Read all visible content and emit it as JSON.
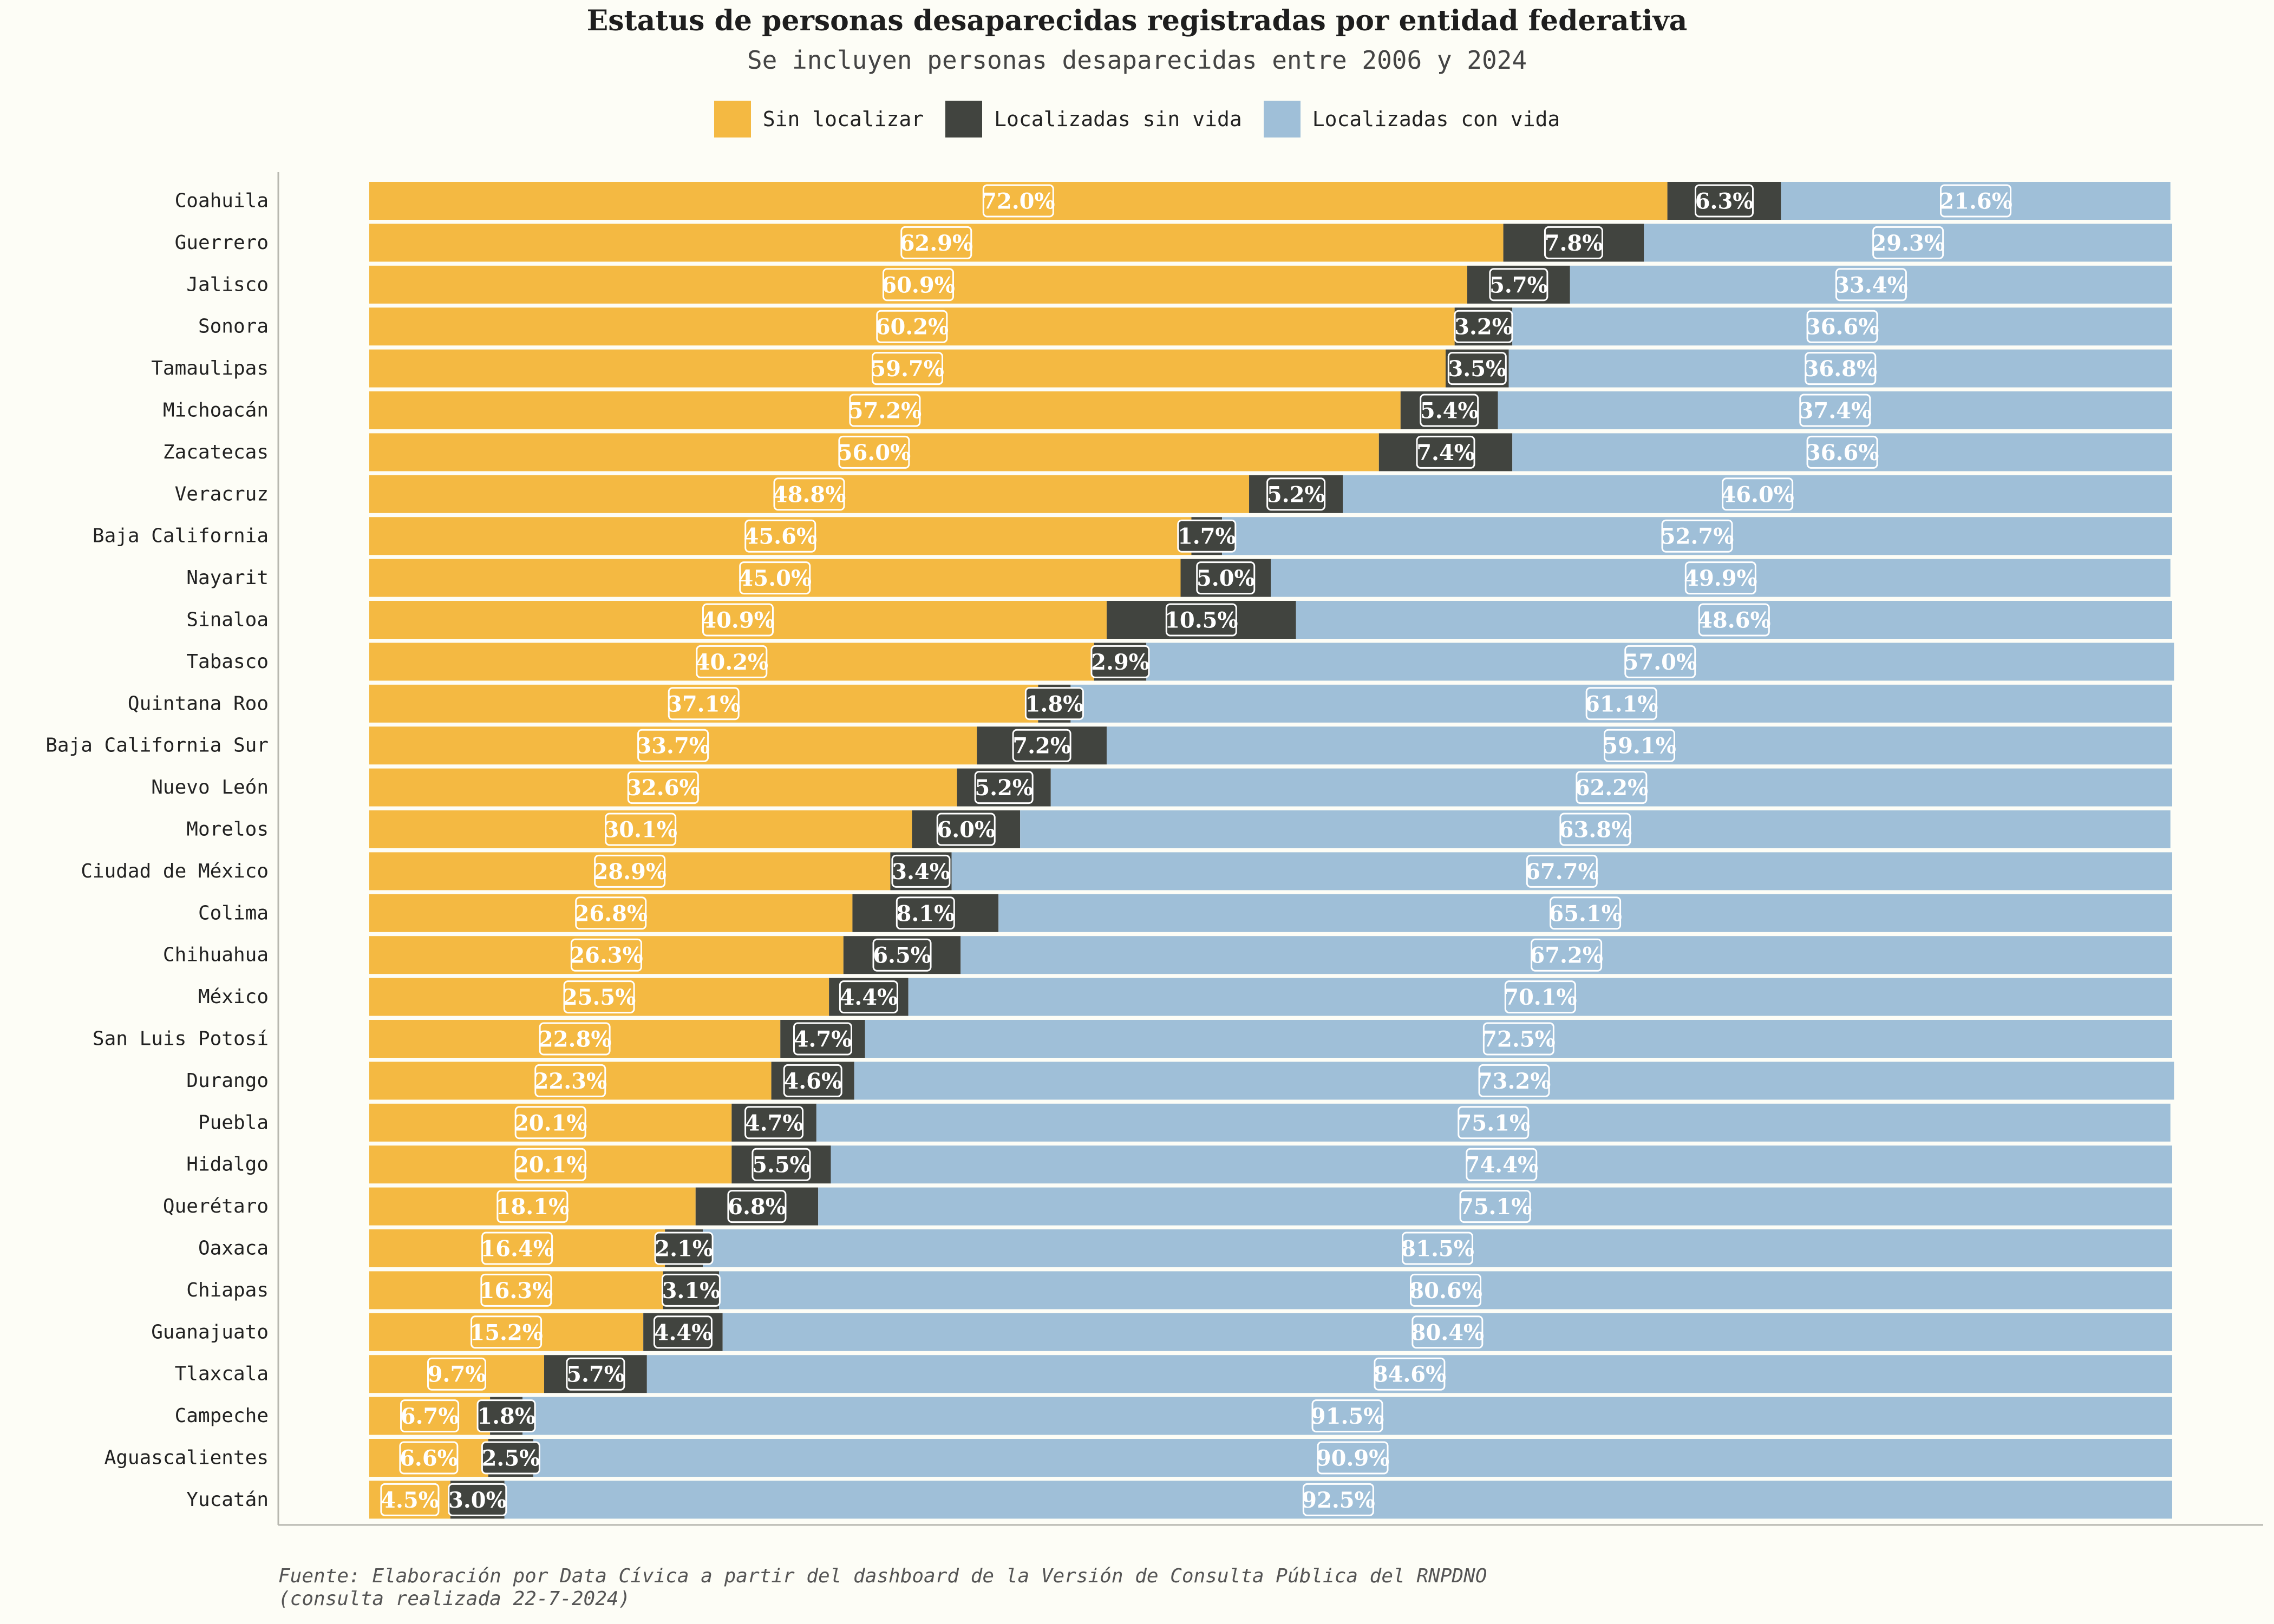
{
  "title": "Estatus de personas desaparecidas registradas por entidad federativa",
  "subtitle": "Se incluyen personas desaparecidas entre 2006 y 2024",
  "footer": {
    "line1": "Fuente: Elaboración por Data Cívica a partir del dashboard de la Versión de Consulta Pública del RNPDNO",
    "line2": "(consulta realizada 22-7-2024)"
  },
  "colors": {
    "sin_localizar": "#f4b942",
    "sin_vida": "#41443f",
    "con_vida": "#9fbfd8",
    "background": "#fdfdf6"
  },
  "chart_data": {
    "type": "bar",
    "orientation": "horizontal",
    "stacked": true,
    "unit": "%",
    "legend_position": "top",
    "grid": false,
    "xlim": [
      0,
      100
    ],
    "categories": [
      "Coahuila",
      "Guerrero",
      "Jalisco",
      "Sonora",
      "Tamaulipas",
      "Michoacán",
      "Zacatecas",
      "Veracruz",
      "Baja California",
      "Nayarit",
      "Sinaloa",
      "Tabasco",
      "Quintana Roo",
      "Baja California Sur",
      "Nuevo León",
      "Morelos",
      "Ciudad de México",
      "Colima",
      "Chihuahua",
      "México",
      "San Luis Potosí",
      "Durango",
      "Puebla",
      "Hidalgo",
      "Querétaro",
      "Oaxaca",
      "Chiapas",
      "Guanajuato",
      "Tlaxcala",
      "Campeche",
      "Aguascalientes",
      "Yucatán"
    ],
    "series": [
      {
        "name": "Sin localizar",
        "color": "#f4b942",
        "values": [
          72.0,
          62.9,
          60.9,
          60.2,
          59.7,
          57.2,
          56.0,
          48.8,
          45.6,
          45.0,
          40.9,
          40.2,
          37.1,
          33.7,
          32.6,
          30.1,
          28.9,
          26.8,
          26.3,
          25.5,
          22.8,
          22.3,
          20.1,
          20.1,
          18.1,
          16.4,
          16.3,
          15.2,
          9.7,
          6.7,
          6.6,
          4.5
        ]
      },
      {
        "name": "Localizadas sin vida",
        "color": "#41443f",
        "values": [
          6.3,
          7.8,
          5.7,
          3.2,
          3.5,
          5.4,
          7.4,
          5.2,
          1.7,
          5.0,
          10.5,
          2.9,
          1.8,
          7.2,
          5.2,
          6.0,
          3.4,
          8.1,
          6.5,
          4.4,
          4.7,
          4.6,
          4.7,
          5.5,
          6.8,
          2.1,
          3.1,
          4.4,
          5.7,
          1.8,
          2.5,
          3.0
        ]
      },
      {
        "name": "Localizadas con vida",
        "color": "#9fbfd8",
        "values": [
          21.6,
          29.3,
          33.4,
          36.6,
          36.8,
          37.4,
          36.6,
          46.0,
          52.7,
          49.9,
          48.6,
          57.0,
          61.1,
          59.1,
          62.2,
          63.8,
          67.7,
          65.1,
          67.2,
          70.1,
          72.5,
          73.2,
          75.1,
          74.4,
          75.1,
          81.5,
          80.6,
          80.4,
          84.6,
          91.5,
          90.9,
          92.5
        ]
      }
    ]
  }
}
